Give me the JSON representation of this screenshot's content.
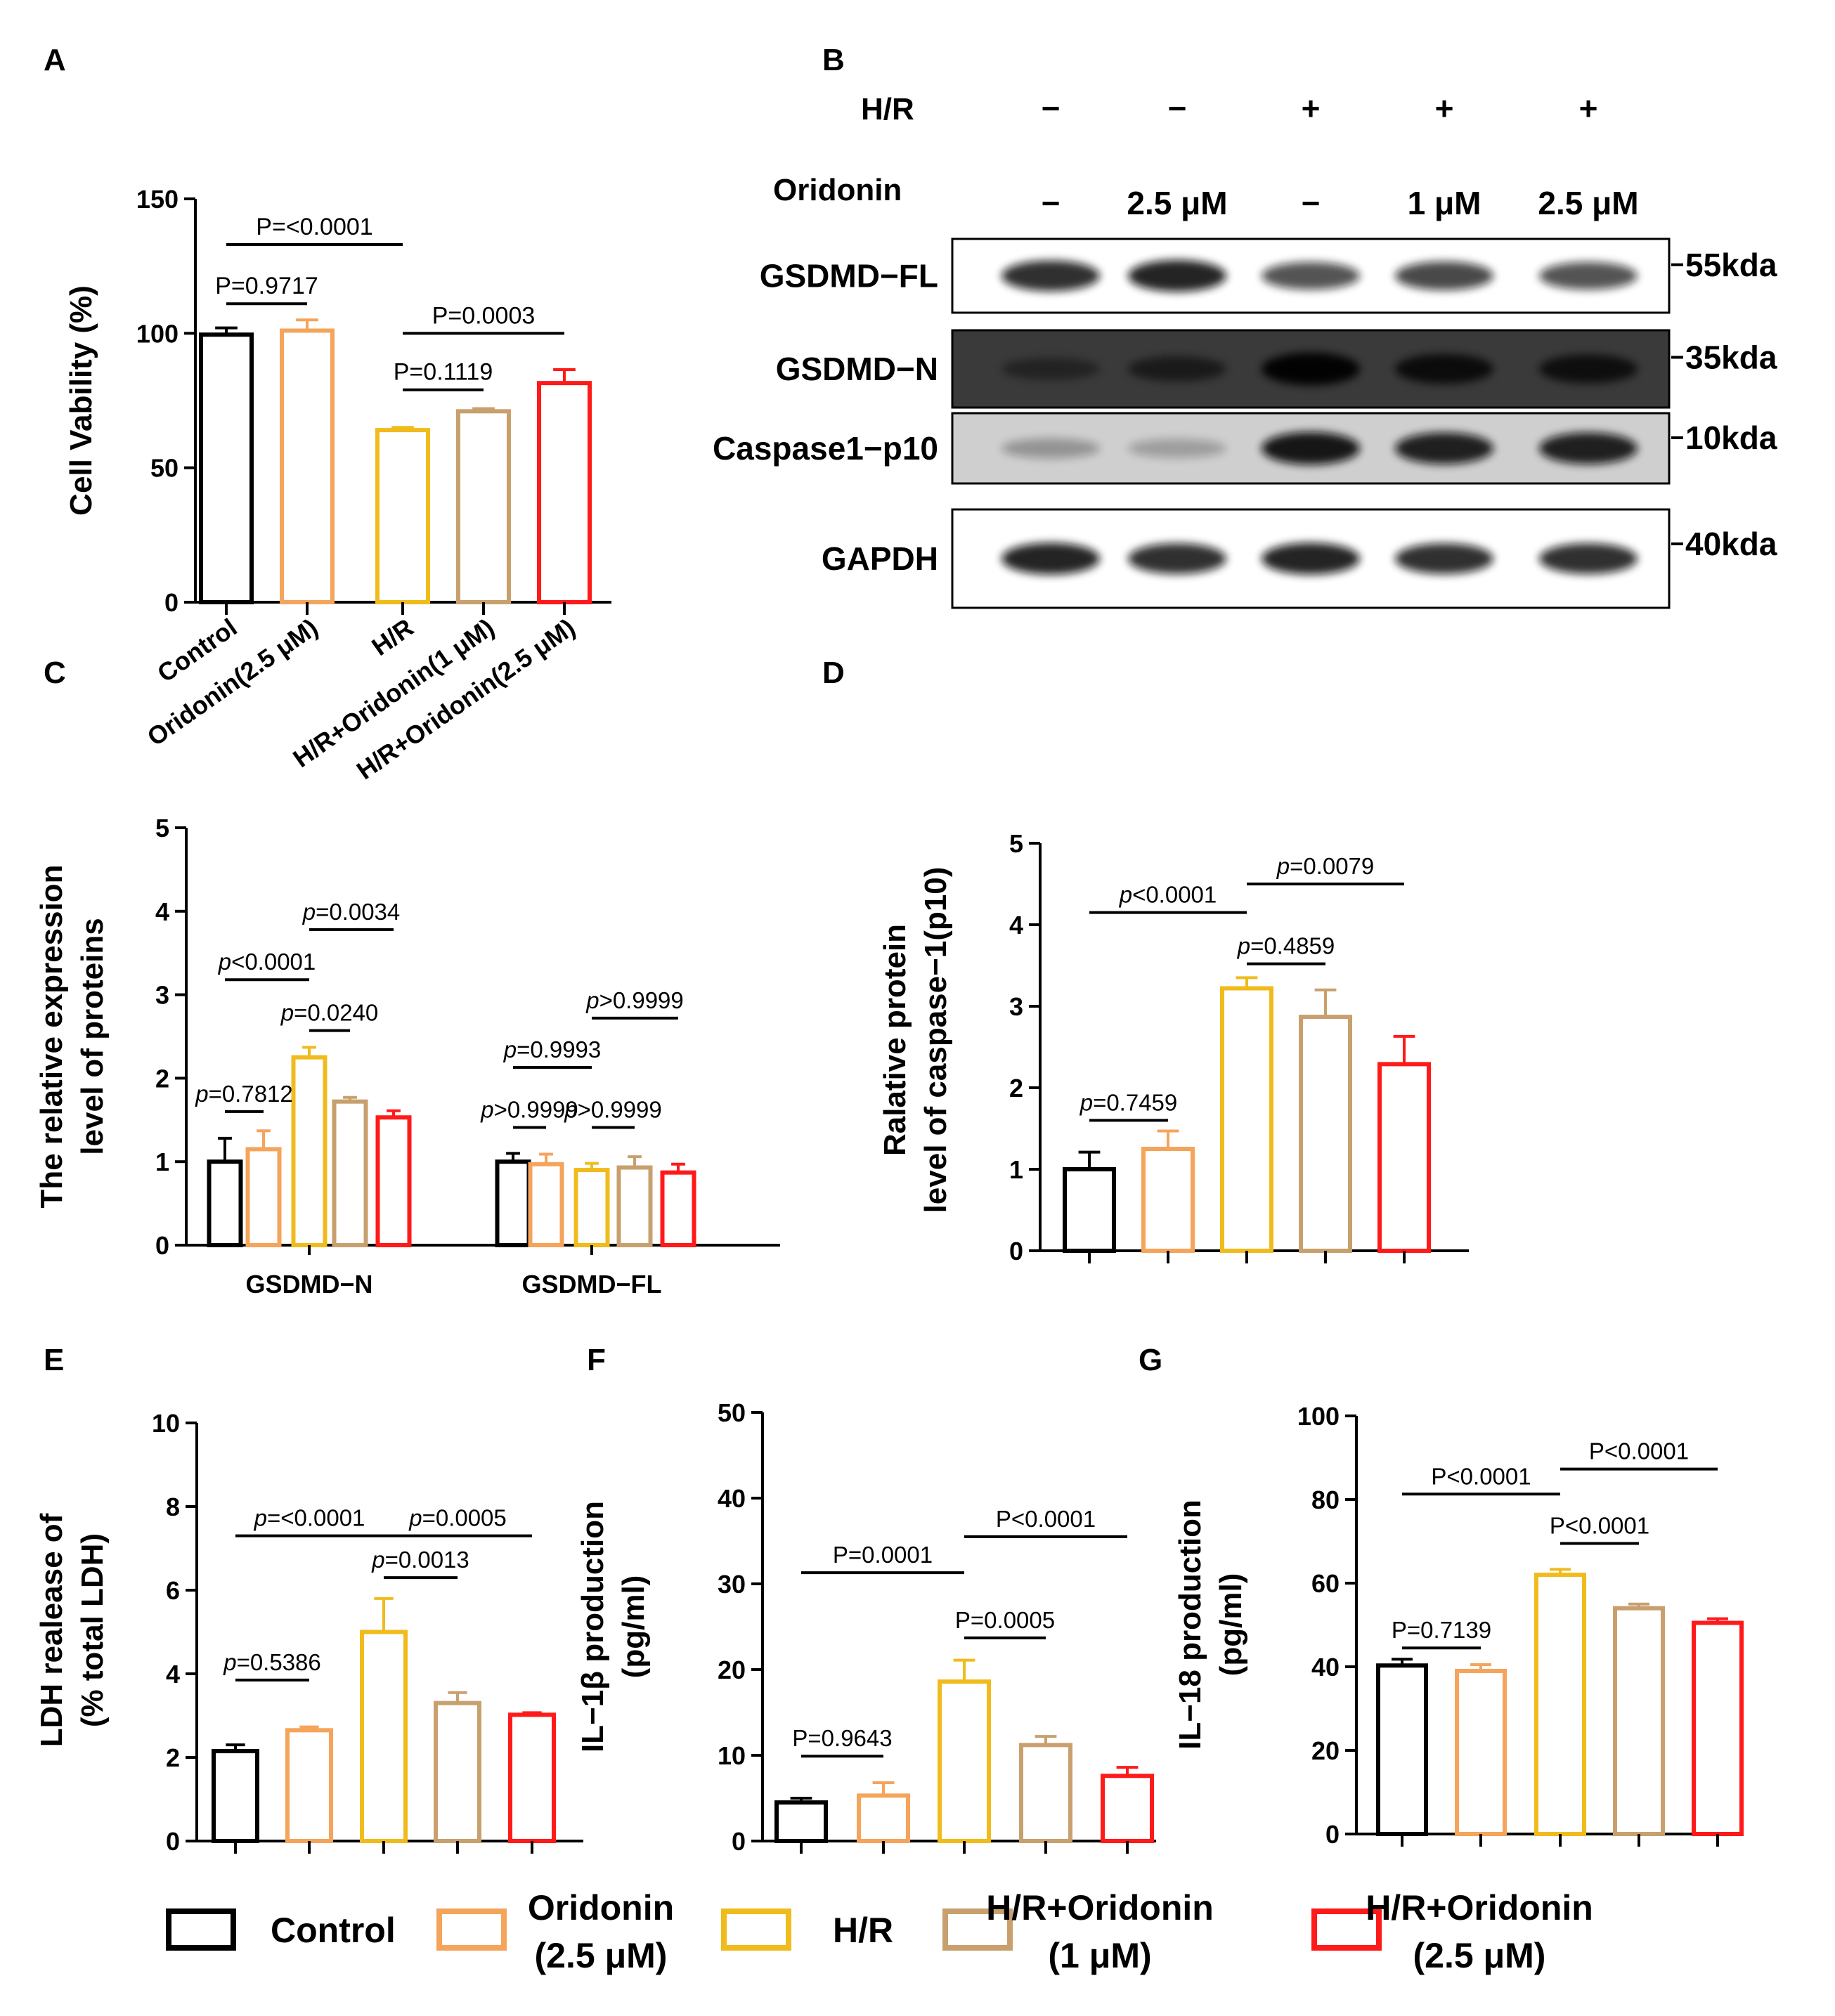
{
  "colors": {
    "control": "#000000",
    "oridonin": "#f5a45b",
    "hr": "#f0bb1c",
    "hr_ori1": "#c8a06e",
    "hr_ori25": "#ff1a1a"
  },
  "panel_letters": {
    "A": "A",
    "B": "B",
    "C": "C",
    "D": "D",
    "E": "E",
    "F": "F",
    "G": "G"
  },
  "legend": {
    "items": [
      {
        "line1": "Control",
        "line2": ""
      },
      {
        "line1": "Oridonin",
        "line2": "(2.5 μM)"
      },
      {
        "line1": "H/R",
        "line2": ""
      },
      {
        "line1": "H/R+Oridonin",
        "line2": "(1 μM)"
      },
      {
        "line1": "H/R+Oridonin",
        "line2": "(2.5 μM)"
      }
    ]
  },
  "blot": {
    "hr_label": "H/R",
    "oridonin_label": "Oridonin",
    "hr_values": [
      "−",
      "−",
      "+",
      "+",
      "+"
    ],
    "oridonin_values": [
      "−",
      "2.5 μM",
      "−",
      "1 μM",
      "2.5 μM"
    ],
    "rows": [
      {
        "name": "GSDMD−FL",
        "size": "55kda",
        "intensity": [
          0.85,
          0.9,
          0.7,
          0.75,
          0.7
        ]
      },
      {
        "name": "GSDMD−N",
        "size": "35kda",
        "intensity": [
          0.4,
          0.55,
          0.95,
          0.8,
          0.75
        ]
      },
      {
        "name": "Caspase1−p10",
        "size": "10kda",
        "intensity": [
          0.3,
          0.25,
          0.95,
          0.9,
          0.9
        ]
      },
      {
        "name": "GAPDH",
        "size": "40kda",
        "intensity": [
          0.9,
          0.85,
          0.9,
          0.85,
          0.85
        ]
      }
    ]
  },
  "chart_data": [
    {
      "id": "A",
      "type": "bar",
      "title": "",
      "ylabel": "Cell Vability (%)",
      "ylim": [
        0,
        150
      ],
      "yticks": [
        0,
        50,
        100,
        150
      ],
      "categories": [
        "Control",
        "Oridonin(2.5 μM)",
        "H/R",
        "H/R+Oridonin(1 μM)",
        "H/R+Oridonin(2.5 μM)"
      ],
      "values": [
        99.5,
        101,
        64,
        71,
        81.5
      ],
      "errors": [
        2.5,
        4,
        1,
        1,
        5
      ],
      "comparisons": [
        {
          "label": "P=0.9717",
          "from": 0,
          "to": 1,
          "y": 111
        },
        {
          "label": "P=<0.0001",
          "from": 0,
          "to": 2,
          "y": 133
        },
        {
          "label": "P=0.1119",
          "from": 2,
          "to": 3,
          "y": 79
        },
        {
          "label": "P=0.0003",
          "from": 2,
          "to": 4,
          "y": 100
        }
      ]
    },
    {
      "id": "C",
      "type": "bar",
      "title": "",
      "ylabel": "The relative expression level of proteins",
      "ylim": [
        0,
        5
      ],
      "yticks": [
        0,
        1,
        2,
        3,
        4,
        5
      ],
      "groups": [
        "GSDMD−N",
        "GSDMD−FL"
      ],
      "series": [
        {
          "name": "Control",
          "values": [
            1.0,
            1.0
          ],
          "errors": [
            0.28,
            0.1
          ]
        },
        {
          "name": "Oridonin (2.5 μM)",
          "values": [
            1.15,
            0.97
          ],
          "errors": [
            0.22,
            0.12
          ]
        },
        {
          "name": "H/R",
          "values": [
            2.25,
            0.9
          ],
          "errors": [
            0.12,
            0.08
          ]
        },
        {
          "name": "H/R+Oridonin (1 μM)",
          "values": [
            1.72,
            0.93
          ],
          "errors": [
            0.05,
            0.13
          ]
        },
        {
          "name": "H/R+Oridonin (2.5 μM)",
          "values": [
            1.53,
            0.87
          ],
          "errors": [
            0.08,
            0.1
          ]
        }
      ],
      "comparisons": [
        {
          "italic": "p",
          "rest": "=0.7812",
          "group": 0,
          "from": 0,
          "to": 1,
          "y": 1.6
        },
        {
          "italic": "p",
          "rest": "<0.0001",
          "group": 0,
          "from": 0,
          "to": 2,
          "y": 3.18
        },
        {
          "italic": "p",
          "rest": "=0.0240",
          "group": 0,
          "from": 2,
          "to": 3,
          "y": 2.57
        },
        {
          "italic": "p",
          "rest": "=0.0034",
          "group": 0,
          "from": 2,
          "to": 4,
          "y": 3.78
        },
        {
          "italic": "p",
          "rest": ">0.9999",
          "group": 1,
          "from": 0,
          "to": 1,
          "y": 1.41
        },
        {
          "italic": "p",
          "rest": "=0.9993",
          "group": 1,
          "from": 0,
          "to": 2,
          "y": 2.13
        },
        {
          "italic": "p",
          "rest": ">0.9999",
          "group": 1,
          "from": 2,
          "to": 3,
          "y": 1.41
        },
        {
          "italic": "p",
          "rest": ">0.9999",
          "group": 1,
          "from": 2,
          "to": 4,
          "y": 2.72
        }
      ]
    },
    {
      "id": "D",
      "type": "bar",
      "title": "",
      "ylabel": "Ralative protein level of caspase−1(p10)",
      "ylim": [
        0,
        5
      ],
      "yticks": [
        0,
        1,
        2,
        3,
        4,
        5
      ],
      "categories": [
        "Control",
        "Oridonin (2.5 μM)",
        "H/R",
        "H/R+Oridonin (1 μM)",
        "H/R+Oridonin (2.5 μM)"
      ],
      "values": [
        1.0,
        1.25,
        3.22,
        2.87,
        2.29
      ],
      "errors": [
        0.21,
        0.22,
        0.13,
        0.33,
        0.34
      ],
      "comparisons": [
        {
          "italic": "p",
          "rest": "=0.7459",
          "from": 0,
          "to": 1,
          "y": 1.6
        },
        {
          "italic": "p",
          "rest": "<0.0001",
          "from": 0,
          "to": 2,
          "y": 4.15
        },
        {
          "italic": "p",
          "rest": "=0.4859",
          "from": 2,
          "to": 3,
          "y": 3.52
        },
        {
          "italic": "p",
          "rest": "=0.0079",
          "from": 2,
          "to": 4,
          "y": 4.5
        }
      ]
    },
    {
      "id": "E",
      "type": "bar",
      "title": "",
      "ylabel": "LDH realease of (% total LDH)",
      "ylim": [
        0,
        10
      ],
      "yticks": [
        0,
        2,
        4,
        6,
        8,
        10
      ],
      "categories": [
        "Control",
        "Oridonin (2.5 μM)",
        "H/R",
        "H/R+Oridonin (1 μM)",
        "H/R+Oridonin (2.5 μM)"
      ],
      "values": [
        2.15,
        2.65,
        5.0,
        3.3,
        3.02
      ],
      "errors": [
        0.15,
        0.08,
        0.8,
        0.25,
        0.05
      ],
      "comparisons": [
        {
          "italic": "p",
          "rest": "=0.5386",
          "from": 0,
          "to": 1,
          "y": 3.85
        },
        {
          "italic": "p",
          "rest": "=<0.0001",
          "from": 0,
          "to": 2,
          "y": 7.3
        },
        {
          "italic": "p",
          "rest": "=0.0013",
          "from": 2,
          "to": 3,
          "y": 6.3
        },
        {
          "italic": "p",
          "rest": "=0.0005",
          "from": 2,
          "to": 4,
          "y": 7.3
        }
      ]
    },
    {
      "id": "F",
      "type": "bar",
      "title": "",
      "ylabel": "IL−1β production (pg/ml)",
      "ylim": [
        0,
        50
      ],
      "yticks": [
        0,
        10,
        20,
        30,
        40,
        50
      ],
      "categories": [
        "Control",
        "Oridonin (2.5 μM)",
        "H/R",
        "H/R+Oridonin (1 μM)",
        "H/R+Oridonin (2.5 μM)"
      ],
      "values": [
        4.5,
        5.3,
        18.6,
        11.2,
        7.6
      ],
      "errors": [
        0.5,
        1.5,
        2.5,
        1,
        1
      ],
      "comparisons": [
        {
          "label": "P=0.9643",
          "from": 0,
          "to": 1,
          "y": 9.9
        },
        {
          "label": "P=0.0001",
          "from": 0,
          "to": 2,
          "y": 31.3
        },
        {
          "label": "P=0.0005",
          "from": 2,
          "to": 3,
          "y": 23.7
        },
        {
          "label": "P<0.0001",
          "from": 2,
          "to": 4,
          "y": 35.5
        }
      ]
    },
    {
      "id": "G",
      "type": "bar",
      "title": "",
      "ylabel": "IL−18 production (pg/ml)",
      "ylim": [
        0,
        100
      ],
      "yticks": [
        0,
        20,
        40,
        60,
        80,
        100
      ],
      "categories": [
        "Control",
        "Oridonin (2.5 μM)",
        "H/R",
        "H/R+Oridonin (1 μM)",
        "H/R+Oridonin (2.5 μM)"
      ],
      "values": [
        40.3,
        39,
        62,
        54,
        50.5
      ],
      "errors": [
        1.5,
        1.5,
        1.3,
        1,
        1
      ],
      "comparisons": [
        {
          "label": "P=0.7139",
          "from": 0,
          "to": 1,
          "y": 44.5
        },
        {
          "label": "P<0.0001",
          "from": 0,
          "to": 2,
          "y": 81.3
        },
        {
          "label": "P<0.0001",
          "from": 2,
          "to": 3,
          "y": 69.5
        },
        {
          "label": "P<0.0001",
          "from": 2,
          "to": 4,
          "y": 87.3
        }
      ]
    }
  ]
}
